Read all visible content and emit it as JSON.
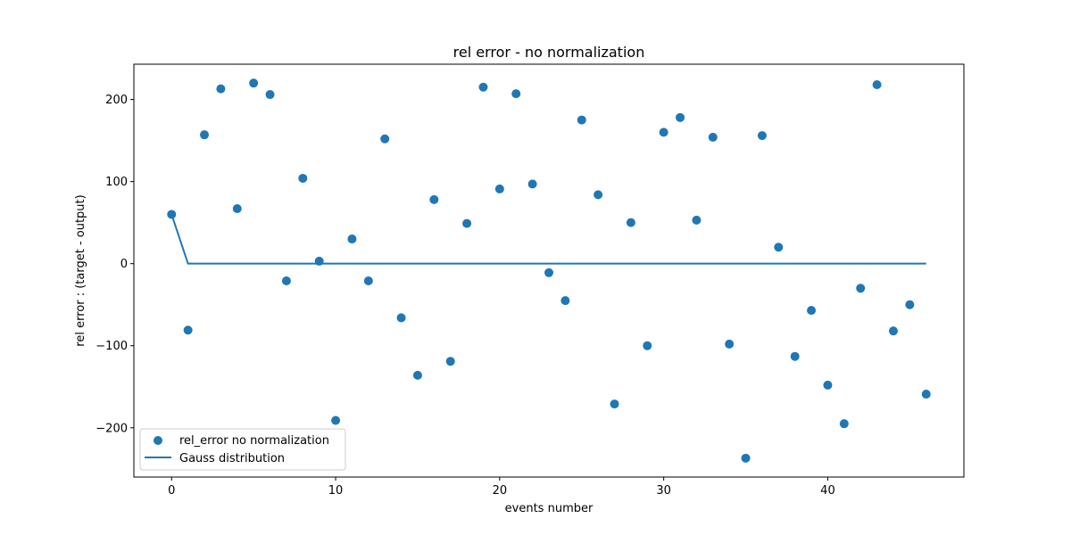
{
  "chart_data": {
    "type": "scatter",
    "title": "rel error - no normalization",
    "xlabel": "events number",
    "ylabel": "rel error : (target - output)",
    "xlim": [
      -2.3,
      48.3
    ],
    "ylim": [
      -260,
      243
    ],
    "x_ticks": [
      0,
      10,
      20,
      30,
      40
    ],
    "y_ticks": [
      -200,
      -100,
      0,
      100,
      200
    ],
    "grid": false,
    "legend_position": "lower-left",
    "series": [
      {
        "name": "rel_error no normalization",
        "kind": "scatter",
        "color": "#1f77b4",
        "x": [
          0,
          1,
          2,
          3,
          4,
          5,
          6,
          7,
          8,
          9,
          10,
          11,
          12,
          13,
          14,
          15,
          16,
          17,
          18,
          19,
          20,
          21,
          22,
          23,
          24,
          25,
          26,
          27,
          28,
          29,
          30,
          31,
          32,
          33,
          34,
          35,
          36,
          37,
          38,
          39,
          40,
          41,
          42,
          43,
          44,
          45,
          46
        ],
        "y": [
          60,
          -81,
          157,
          213,
          67,
          220,
          206,
          -21,
          104,
          3,
          -191,
          30,
          -21,
          152,
          -66,
          -136,
          78,
          -119,
          49,
          215,
          91,
          207,
          97,
          -11,
          -45,
          175,
          84,
          -171,
          50,
          -100,
          160,
          178,
          53,
          154,
          -98,
          -237,
          156,
          20,
          -113,
          -57,
          -148,
          -195,
          -30,
          218,
          -82,
          -50,
          -159
        ]
      },
      {
        "name": "Gauss distribution",
        "kind": "line",
        "color": "#1f77b4",
        "x": [
          0,
          1,
          2,
          3,
          4,
          5,
          6,
          7,
          8,
          9,
          10,
          11,
          12,
          13,
          14,
          15,
          16,
          17,
          18,
          19,
          20,
          21,
          22,
          23,
          24,
          25,
          26,
          27,
          28,
          29,
          30,
          31,
          32,
          33,
          34,
          35,
          36,
          37,
          38,
          39,
          40,
          41,
          42,
          43,
          44,
          45,
          46
        ],
        "y": [
          60,
          0,
          0,
          0,
          0,
          0,
          0,
          0,
          0,
          0,
          0,
          0,
          0,
          0,
          0,
          0,
          0,
          0,
          0,
          0,
          0,
          0,
          0,
          0,
          0,
          0,
          0,
          0,
          0,
          0,
          0,
          0,
          0,
          0,
          0,
          0,
          0,
          0,
          0,
          0,
          0,
          0,
          0,
          0,
          0,
          0,
          0
        ]
      }
    ]
  }
}
